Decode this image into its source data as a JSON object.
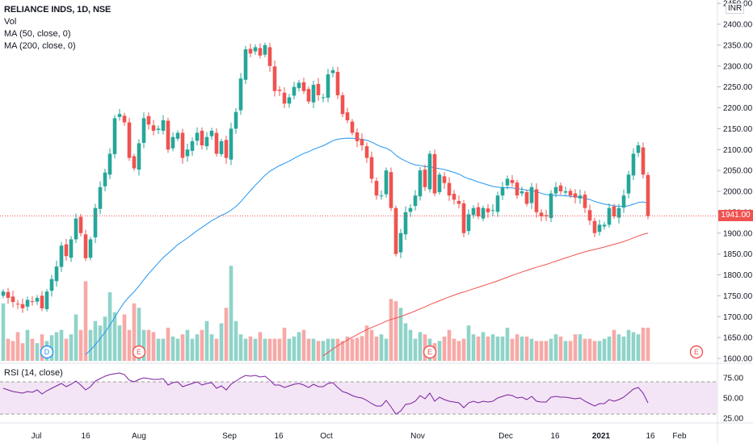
{
  "header": {
    "symbol_title": "RELIANCE INDS, 1D, NSE",
    "volume_label": "Vol",
    "ma50_label": "MA (50, close, 0)",
    "ma200_label": "MA (200, close, 0)",
    "currency": "INR",
    "last_price_label": "1941.00"
  },
  "rsi": {
    "label": "RSI (14, close)",
    "upper_band": 70,
    "lower_band": 30
  },
  "colors": {
    "up": "#26a69a",
    "down": "#ef5350",
    "volume_up": "#8fd3c9",
    "volume_down": "#f7a9a7",
    "ma50": "#2196f3",
    "ma200": "#ef5350",
    "rsi_line": "#7b1fa2",
    "rsi_fill": "#f3e5f5",
    "event_earnings": "#ef5350",
    "event_dividend": "#2196f3"
  },
  "chart_data": {
    "type": "candlestick",
    "price_axis": {
      "min": 1600,
      "max": 2450,
      "ticks": [
        1600,
        1650,
        1700,
        1750,
        1800,
        1850,
        1900,
        1950,
        2000,
        2050,
        2100,
        2150,
        2200,
        2250,
        2300,
        2350,
        2400,
        2450
      ]
    },
    "time_axis_labels": [
      {
        "label": "Jul",
        "bold": false
      },
      {
        "label": "16",
        "bold": false
      },
      {
        "label": "Aug",
        "bold": false
      },
      {
        "label": "Sep",
        "bold": false
      },
      {
        "label": "16",
        "bold": false
      },
      {
        "label": "Oct",
        "bold": false
      },
      {
        "label": "Nov",
        "bold": false
      },
      {
        "label": "Dec",
        "bold": false
      },
      {
        "label": "16",
        "bold": false
      },
      {
        "label": "2021",
        "bold": true
      },
      {
        "label": "16",
        "bold": false
      },
      {
        "label": "Feb",
        "bold": false
      }
    ],
    "rsi_axis": {
      "min": 20,
      "max": 80,
      "ticks": [
        25,
        50,
        75
      ]
    },
    "last_price": 1941,
    "closes": [
      1760,
      1745,
      1735,
      1730,
      1720,
      1740,
      1735,
      1745,
      1720,
      1760,
      1790,
      1820,
      1870,
      1845,
      1885,
      1935,
      1900,
      1840,
      1885,
      1960,
      2010,
      2045,
      2090,
      2175,
      2185,
      2165,
      2080,
      2055,
      2115,
      2175,
      2160,
      2145,
      2150,
      2170,
      2100,
      2130,
      2140,
      2080,
      2100,
      2120,
      2140,
      2110,
      2130,
      2145,
      2090,
      2120,
      2080,
      2150,
      2190,
      2270,
      2340,
      2330,
      2345,
      2325,
      2350,
      2300,
      2240,
      2240,
      2210,
      2225,
      2250,
      2260,
      2240,
      2215,
      2255,
      2230,
      2225,
      2280,
      2290,
      2230,
      2185,
      2170,
      2140,
      2120,
      2110,
      2080,
      2030,
      1990,
      1990,
      2050,
      1960,
      1850,
      1900,
      1950,
      1960,
      1990,
      2050,
      2010,
      2090,
      1995,
      2040,
      2020,
      1990,
      1980,
      1970,
      1900,
      1945,
      1960,
      1940,
      1960,
      1950,
      1955,
      1990,
      2010,
      2030,
      2020,
      1990,
      2000,
      1970,
      2010,
      1950,
      1940,
      1940,
      1995,
      2010,
      2000,
      2000,
      1990,
      1985,
      1990,
      1960,
      1930,
      1900,
      1920,
      1920,
      1960,
      1940,
      1960,
      1990,
      2040,
      2090,
      2110,
      2040,
      1941
    ],
    "volume_max": 2100,
    "volume": [
      1300,
      500,
      450,
      650,
      400,
      700,
      500,
      400,
      600,
      450,
      580,
      650,
      700,
      500,
      600,
      1050,
      700,
      1800,
      700,
      900,
      800,
      1000,
      1550,
      1100,
      800,
      1050,
      700,
      1300,
      1200,
      700,
      700,
      650,
      500,
      500,
      750,
      550,
      500,
      600,
      700,
      500,
      600,
      700,
      900,
      600,
      500,
      850,
      1200,
      2150,
      900,
      600,
      500,
      550,
      500,
      650,
      500,
      500,
      500,
      500,
      750,
      500,
      550,
      650,
      700,
      500,
      500,
      450,
      450,
      500,
      500,
      500,
      450,
      550,
      500,
      520,
      560,
      800,
      700,
      550,
      600,
      500,
      1400,
      1350,
      1200,
      850,
      700,
      500,
      650,
      600,
      500,
      400,
      450,
      550,
      700,
      500,
      450,
      500,
      800,
      600,
      550,
      650,
      550,
      600,
      550,
      550,
      750,
      500,
      600,
      550,
      550,
      500,
      450,
      450,
      450,
      500,
      600,
      550,
      450,
      450,
      600,
      600,
      500,
      500,
      450,
      450,
      500,
      550,
      700,
      600,
      550,
      700,
      650,
      600,
      750,
      750
    ],
    "ma50_range": {
      "from_bar": 17,
      "start": 1600,
      "end": 1972
    },
    "ma200_range": {
      "from_bar": 66,
      "start": 1600,
      "end": 1900
    },
    "rsi_values": [
      62,
      60,
      58,
      57,
      56,
      58,
      57,
      60,
      55,
      59,
      62,
      65,
      68,
      64,
      67,
      71,
      66,
      60,
      64,
      71,
      74,
      77,
      79,
      80,
      81,
      79,
      72,
      70,
      73,
      75,
      74,
      73,
      73,
      74,
      66,
      69,
      70,
      64,
      66,
      68,
      70,
      66,
      68,
      69,
      62,
      65,
      60,
      67,
      71,
      75,
      78,
      77,
      78,
      76,
      77,
      72,
      66,
      66,
      63,
      65,
      67,
      68,
      66,
      63,
      67,
      64,
      64,
      68,
      69,
      63,
      58,
      56,
      53,
      51,
      50,
      47,
      43,
      40,
      40,
      47,
      39,
      30,
      34,
      42,
      43,
      46,
      53,
      49,
      56,
      46,
      51,
      48,
      46,
      45,
      44,
      38,
      44,
      46,
      44,
      46,
      45,
      46,
      50,
      52,
      54,
      53,
      50,
      51,
      48,
      52,
      46,
      45,
      45,
      51,
      52,
      51,
      51,
      50,
      49,
      50,
      46,
      43,
      40,
      43,
      43,
      48,
      46,
      48,
      51,
      56,
      61,
      63,
      56,
      44
    ],
    "events": [
      {
        "type": "dividend",
        "label": "D",
        "bar": 9
      },
      {
        "type": "earnings",
        "label": "E",
        "bar": 28
      },
      {
        "type": "earnings",
        "label": "E",
        "bar": 88
      },
      {
        "type": "earnings",
        "label": "E",
        "bar": 143
      }
    ]
  }
}
